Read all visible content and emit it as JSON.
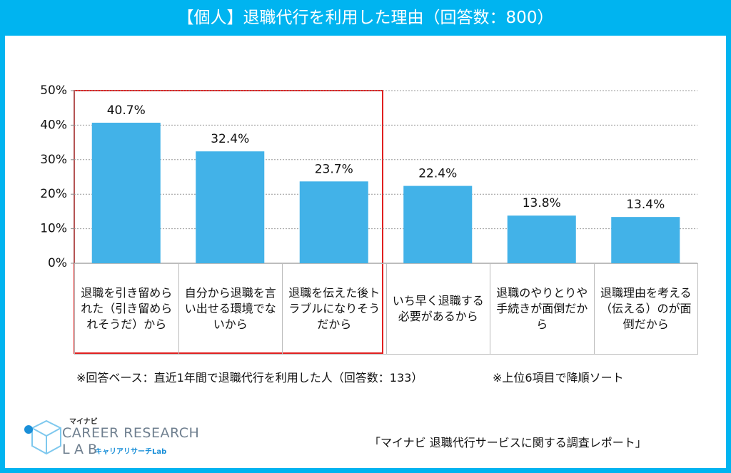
{
  "chart_data": {
    "type": "bar",
    "title": "【個人】退職代行を利用した理由（回答数：800）",
    "categories": [
      "退職を引き留められた（引き留められそうだ）から",
      "自分から退職を言い出せる環境でないから",
      "退職を伝えた後トラブルになりそうだから",
      "いち早く退職する必要があるから",
      "退職のやりとりや手続きが面倒だから",
      "退職理由を考える（伝える）のが面倒だから"
    ],
    "values": [
      40.7,
      32.4,
      23.7,
      22.4,
      13.8,
      13.4
    ],
    "value_labels": [
      "40.7%",
      "32.4%",
      "23.7%",
      "22.4%",
      "13.8%",
      "13.4%"
    ],
    "color": "#42b2e8",
    "ylim": [
      0,
      50
    ],
    "yticks": [
      {
        "value": 0,
        "label": "0%"
      },
      {
        "value": 10,
        "label": "10%"
      },
      {
        "value": 20,
        "label": "20%"
      },
      {
        "value": 30,
        "label": "30%"
      },
      {
        "value": 40,
        "label": "40%"
      },
      {
        "value": 50,
        "label": "50%"
      }
    ],
    "grid": true,
    "notes": [
      "※回答ベース：直近1年間で退職代行を利用した人（回答数：133）",
      "※上位6項目で降順ソート"
    ],
    "source": "「マイナビ 退職代行サービスに関する調査レポート」",
    "logo": {
      "brand": "マイナビ",
      "line1": "CAREER RESEARCH",
      "line2": "LAB",
      "sub": "キャリアリサーチLab"
    }
  }
}
